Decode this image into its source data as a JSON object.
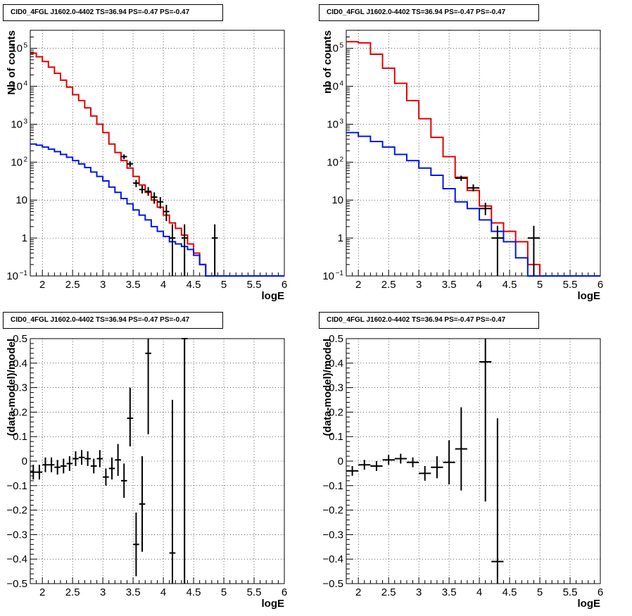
{
  "chart_data": [
    {
      "id": "top-left",
      "type": "line",
      "title": "CID0_4FGL J1602.0-4402 TS=36.94 PS=-0.47 PS=-0.47",
      "xlabel": "logE",
      "ylabel": "Nb of counts",
      "xlim": [
        1.8,
        6.0
      ],
      "ylim": [
        0.1,
        300000
      ],
      "yscale": "log",
      "grid": true,
      "xticks": [
        "2",
        "2.5",
        "3",
        "3.5",
        "4",
        "4.5",
        "5",
        "5.5",
        "6"
      ],
      "yticks": [
        {
          "label": "10",
          "sup": "−1",
          "value": 0.1
        },
        {
          "label": "1",
          "sup": "",
          "value": 1
        },
        {
          "label": "10",
          "sup": "",
          "value": 10
        },
        {
          "label": "10",
          "sup": "2",
          "value": 100
        },
        {
          "label": "10",
          "sup": "3",
          "value": 1000
        },
        {
          "label": "10",
          "sup": "4",
          "value": 10000
        },
        {
          "label": "10",
          "sup": "5",
          "value": 100000
        }
      ],
      "series": [
        {
          "color": "#e00000",
          "kind": "step",
          "edges": [
            1.8,
            1.9,
            2.0,
            2.1,
            2.2,
            2.3,
            2.4,
            2.5,
            2.6,
            2.7,
            2.8,
            2.9,
            3.0,
            3.1,
            3.2,
            3.3,
            3.4,
            3.5,
            3.6,
            3.7,
            3.8,
            3.9,
            4.0,
            4.1,
            4.2,
            4.3,
            4.4,
            4.5,
            4.6,
            4.7,
            4.8,
            4.9,
            5.0,
            5.1,
            5.2,
            5.3,
            5.4,
            5.5,
            5.6,
            5.7,
            5.8,
            5.9,
            6.0
          ],
          "values": [
            75000,
            60000,
            45000,
            32000,
            22000,
            14500,
            9500,
            6000,
            4200,
            2700,
            1650,
            1000,
            600,
            300,
            180,
            110,
            70,
            42,
            25,
            16,
            10,
            6.5,
            4,
            2.5,
            1.8,
            1.2,
            0.7,
            0.4,
            0.2,
            0.1,
            0.1,
            0.1,
            0.1,
            0.1,
            0.1,
            0.1,
            0.1,
            0.1,
            0.1,
            0.1,
            0.1,
            0.1
          ]
        },
        {
          "color": "#0018e0",
          "kind": "step",
          "edges": [
            1.8,
            1.9,
            2.0,
            2.1,
            2.2,
            2.3,
            2.4,
            2.5,
            2.6,
            2.7,
            2.8,
            2.9,
            3.0,
            3.1,
            3.2,
            3.3,
            3.4,
            3.5,
            3.6,
            3.7,
            3.8,
            3.9,
            4.0,
            4.1,
            4.2,
            4.3,
            4.4,
            4.5,
            4.6,
            4.7,
            4.8,
            4.9,
            5.0,
            5.1,
            5.2,
            5.3,
            5.4,
            5.5,
            5.6,
            5.7,
            5.8,
            5.9,
            6.0
          ],
          "values": [
            300,
            280,
            250,
            220,
            190,
            160,
            135,
            110,
            90,
            72,
            55,
            42,
            32,
            22,
            16,
            11,
            8,
            5.5,
            4,
            3,
            2,
            1.5,
            1.1,
            0.8,
            0.7,
            0.6,
            0.5,
            0.35,
            0.2,
            0.1,
            0.1,
            0.1,
            0.1,
            0.1,
            0.1,
            0.1,
            0.1,
            0.1,
            0.1,
            0.1,
            0.1,
            0.1
          ]
        },
        {
          "color": "#000000",
          "kind": "errorbar",
          "points": [
            {
              "x": 3.35,
              "y": 140,
              "lo": 120,
              "hi": 160,
              "xerr": 0.05
            },
            {
              "x": 3.45,
              "y": 90,
              "lo": 75,
              "hi": 105,
              "xerr": 0.05
            },
            {
              "x": 3.55,
              "y": 28,
              "lo": 22,
              "hi": 34,
              "xerr": 0.05
            },
            {
              "x": 3.65,
              "y": 19,
              "lo": 15,
              "hi": 24,
              "xerr": 0.05
            },
            {
              "x": 3.75,
              "y": 17,
              "lo": 13,
              "hi": 22,
              "xerr": 0.05
            },
            {
              "x": 3.85,
              "y": 12,
              "lo": 8,
              "hi": 16,
              "xerr": 0.05
            },
            {
              "x": 3.95,
              "y": 9,
              "lo": 6,
              "hi": 12,
              "xerr": 0.05
            },
            {
              "x": 4.05,
              "y": 5,
              "lo": 2.8,
              "hi": 7.5,
              "xerr": 0.05
            },
            {
              "x": 4.15,
              "y": 1,
              "lo": 0.1,
              "hi": 2.3,
              "xerr": 0.05
            },
            {
              "x": 4.35,
              "y": 1,
              "lo": 0.1,
              "hi": 2.3,
              "xerr": 0.05
            },
            {
              "x": 4.85,
              "y": 1,
              "lo": 0.1,
              "hi": 2.3,
              "xerr": 0.05
            }
          ]
        }
      ]
    },
    {
      "id": "top-right",
      "type": "line",
      "title": "CID0_4FGL J1602.0-4402 TS=36.94 PS=-0.47 PS=-0.47",
      "xlabel": "logE",
      "ylabel": "nb of counts",
      "xlim": [
        1.8,
        6.0
      ],
      "ylim": [
        0.1,
        300000
      ],
      "yscale": "log",
      "grid": true,
      "xticks": [
        "2",
        "2.5",
        "3",
        "3.5",
        "4",
        "4.5",
        "5",
        "5.5",
        "6"
      ],
      "yticks": [
        {
          "label": "10",
          "sup": "−1",
          "value": 0.1
        },
        {
          "label": "1",
          "sup": "",
          "value": 1
        },
        {
          "label": "10",
          "sup": "",
          "value": 10
        },
        {
          "label": "10",
          "sup": "2",
          "value": 100
        },
        {
          "label": "10",
          "sup": "3",
          "value": 1000
        },
        {
          "label": "10",
          "sup": "4",
          "value": 10000
        },
        {
          "label": "10",
          "sup": "5",
          "value": 100000
        }
      ],
      "series": [
        {
          "color": "#e00000",
          "kind": "step",
          "edges": [
            1.8,
            2.0,
            2.2,
            2.4,
            2.6,
            2.8,
            3.0,
            3.2,
            3.4,
            3.6,
            3.8,
            4.0,
            4.2,
            4.4,
            4.6,
            4.8,
            5.0,
            5.2,
            5.4,
            5.6,
            5.8,
            6.0
          ],
          "values": [
            150000,
            140000,
            70000,
            30000,
            12000,
            4200,
            1400,
            450,
            140,
            40,
            18,
            7,
            2.5,
            1.5,
            0.8,
            0.2,
            0.1,
            0.1,
            0.1,
            0.1,
            0.1
          ]
        },
        {
          "color": "#0018e0",
          "kind": "step",
          "edges": [
            1.8,
            2.0,
            2.2,
            2.4,
            2.6,
            2.8,
            3.0,
            3.2,
            3.4,
            3.6,
            3.8,
            4.0,
            4.2,
            4.4,
            4.6,
            4.8,
            5.0,
            5.2,
            5.4,
            5.6,
            5.8,
            6.0
          ],
          "values": [
            600,
            480,
            350,
            250,
            160,
            110,
            70,
            45,
            20,
            9,
            6,
            3,
            1.5,
            0.8,
            0.3,
            0.1,
            0.1,
            0.1,
            0.1,
            0.1,
            0.1
          ]
        },
        {
          "color": "#000000",
          "kind": "errorbar",
          "points": [
            {
              "x": 3.7,
              "y": 38,
              "lo": 32,
              "hi": 44,
              "xerr": 0.1
            },
            {
              "x": 3.9,
              "y": 21,
              "lo": 17,
              "hi": 26,
              "xerr": 0.1
            },
            {
              "x": 4.1,
              "y": 6,
              "lo": 4,
              "hi": 8.5,
              "xerr": 0.1
            },
            {
              "x": 4.3,
              "y": 1,
              "lo": 0.1,
              "hi": 2.1,
              "xerr": 0.1
            },
            {
              "x": 4.9,
              "y": 1,
              "lo": 0.1,
              "hi": 2.1,
              "xerr": 0.1
            }
          ]
        }
      ]
    },
    {
      "id": "bottom-left",
      "type": "scatter",
      "title": "CID0_4FGL J1602.0-4402 TS=36.94 PS=-0.47 PS=-0.47",
      "xlabel": "logE",
      "ylabel": "(data-model)/model",
      "xlim": [
        1.8,
        6.0
      ],
      "ylim": [
        -0.5,
        0.5
      ],
      "yscale": "linear",
      "grid": true,
      "xticks": [
        "2",
        "2.5",
        "3",
        "3.5",
        "4",
        "4.5",
        "5",
        "5.5",
        "6"
      ],
      "yticks": [
        {
          "label": "−0.5",
          "sup": "",
          "value": -0.5
        },
        {
          "label": "−0.4",
          "sup": "",
          "value": -0.4
        },
        {
          "label": "−0.3",
          "sup": "",
          "value": -0.3
        },
        {
          "label": "−0.2",
          "sup": "",
          "value": -0.2
        },
        {
          "label": "−0.1",
          "sup": "",
          "value": -0.1
        },
        {
          "label": "0",
          "sup": "",
          "value": 0
        },
        {
          "label": "0.1",
          "sup": "",
          "value": 0.1
        },
        {
          "label": "0.2",
          "sup": "",
          "value": 0.2
        },
        {
          "label": "0.3",
          "sup": "",
          "value": 0.3
        },
        {
          "label": "0.4",
          "sup": "",
          "value": 0.4
        },
        {
          "label": "0.5",
          "sup": "",
          "value": 0.5
        }
      ],
      "series": [
        {
          "color": "#000000",
          "kind": "errorbar",
          "points": [
            {
              "x": 1.85,
              "y": -0.045,
              "lo": -0.075,
              "hi": -0.015,
              "xerr": 0.05
            },
            {
              "x": 1.95,
              "y": -0.045,
              "lo": -0.075,
              "hi": -0.015,
              "xerr": 0.05
            },
            {
              "x": 2.05,
              "y": -0.015,
              "lo": -0.045,
              "hi": 0.015,
              "xerr": 0.05
            },
            {
              "x": 2.15,
              "y": -0.015,
              "lo": -0.045,
              "hi": 0.015,
              "xerr": 0.05
            },
            {
              "x": 2.25,
              "y": -0.025,
              "lo": -0.055,
              "hi": 0.005,
              "xerr": 0.05
            },
            {
              "x": 2.35,
              "y": -0.02,
              "lo": -0.05,
              "hi": 0.01,
              "xerr": 0.05
            },
            {
              "x": 2.45,
              "y": -0.01,
              "lo": -0.04,
              "hi": 0.02,
              "xerr": 0.05
            },
            {
              "x": 2.55,
              "y": 0.01,
              "lo": -0.02,
              "hi": 0.04,
              "xerr": 0.05
            },
            {
              "x": 2.65,
              "y": 0.015,
              "lo": -0.015,
              "hi": 0.045,
              "xerr": 0.05
            },
            {
              "x": 2.75,
              "y": 0.01,
              "lo": -0.02,
              "hi": 0.04,
              "xerr": 0.05
            },
            {
              "x": 2.85,
              "y": -0.02,
              "lo": -0.05,
              "hi": 0.01,
              "xerr": 0.05
            },
            {
              "x": 2.95,
              "y": 0.01,
              "lo": -0.025,
              "hi": 0.045,
              "xerr": 0.05
            },
            {
              "x": 3.05,
              "y": -0.065,
              "lo": -0.1,
              "hi": -0.03,
              "xerr": 0.05
            },
            {
              "x": 3.15,
              "y": -0.03,
              "lo": -0.075,
              "hi": 0.015,
              "xerr": 0.05
            },
            {
              "x": 3.25,
              "y": 0.005,
              "lo": -0.06,
              "hi": 0.07,
              "xerr": 0.05
            },
            {
              "x": 3.35,
              "y": -0.08,
              "lo": -0.15,
              "hi": -0.01,
              "xerr": 0.05
            },
            {
              "x": 3.45,
              "y": 0.175,
              "lo": 0.06,
              "hi": 0.3,
              "xerr": 0.05
            },
            {
              "x": 3.55,
              "y": -0.34,
              "lo": -0.47,
              "hi": -0.21,
              "xerr": 0.05
            },
            {
              "x": 3.65,
              "y": -0.175,
              "lo": -0.37,
              "hi": 0.02,
              "xerr": 0.05
            },
            {
              "x": 3.75,
              "y": 0.44,
              "lo": 0.11,
              "hi": 0.5,
              "xerr": 0.05
            },
            {
              "x": 4.15,
              "y": -0.375,
              "lo": -0.5,
              "hi": 0.25,
              "xerr": 0.05
            },
            {
              "x": 4.35,
              "y": 0.5,
              "lo": -0.5,
              "hi": 0.5,
              "xerr": 0.05
            }
          ]
        }
      ]
    },
    {
      "id": "bottom-right",
      "type": "scatter",
      "title": "CID0_4FGL J1602.0-4402 TS=36.94 PS=-0.47 PS=-0.47",
      "xlabel": "logE",
      "ylabel": "(data-model)/model",
      "xlim": [
        1.8,
        6.0
      ],
      "ylim": [
        -0.5,
        0.5
      ],
      "yscale": "linear",
      "grid": true,
      "xticks": [
        "2",
        "2.5",
        "3",
        "3.5",
        "4",
        "4.5",
        "5",
        "5.5",
        "6"
      ],
      "yticks": [
        {
          "label": "−0.5",
          "sup": "",
          "value": -0.5
        },
        {
          "label": "−0.4",
          "sup": "",
          "value": -0.4
        },
        {
          "label": "−0.3",
          "sup": "",
          "value": -0.3
        },
        {
          "label": "−0.2",
          "sup": "",
          "value": -0.2
        },
        {
          "label": "−0.1",
          "sup": "",
          "value": -0.1
        },
        {
          "label": "0",
          "sup": "",
          "value": 0
        },
        {
          "label": "0.1",
          "sup": "",
          "value": 0.1
        },
        {
          "label": "0.2",
          "sup": "",
          "value": 0.2
        },
        {
          "label": "0.3",
          "sup": "",
          "value": 0.3
        },
        {
          "label": "0.4",
          "sup": "",
          "value": 0.4
        },
        {
          "label": "0.5",
          "sup": "",
          "value": 0.5
        }
      ],
      "series": [
        {
          "color": "#000000",
          "kind": "errorbar",
          "points": [
            {
              "x": 1.9,
              "y": -0.04,
              "lo": -0.06,
              "hi": -0.02,
              "xerr": 0.1
            },
            {
              "x": 2.1,
              "y": -0.015,
              "lo": -0.035,
              "hi": 0.005,
              "xerr": 0.1
            },
            {
              "x": 2.3,
              "y": -0.02,
              "lo": -0.04,
              "hi": 0.0,
              "xerr": 0.1
            },
            {
              "x": 2.5,
              "y": 0.005,
              "lo": -0.015,
              "hi": 0.025,
              "xerr": 0.1
            },
            {
              "x": 2.7,
              "y": 0.01,
              "lo": -0.01,
              "hi": 0.03,
              "xerr": 0.1
            },
            {
              "x": 2.9,
              "y": -0.005,
              "lo": -0.025,
              "hi": 0.015,
              "xerr": 0.1
            },
            {
              "x": 3.1,
              "y": -0.05,
              "lo": -0.08,
              "hi": -0.02,
              "xerr": 0.1
            },
            {
              "x": 3.3,
              "y": -0.025,
              "lo": -0.07,
              "hi": 0.02,
              "xerr": 0.1
            },
            {
              "x": 3.5,
              "y": -0.005,
              "lo": -0.095,
              "hi": 0.085,
              "xerr": 0.1
            },
            {
              "x": 3.7,
              "y": 0.05,
              "lo": -0.12,
              "hi": 0.22,
              "xerr": 0.1
            },
            {
              "x": 4.1,
              "y": 0.405,
              "lo": -0.165,
              "hi": 0.5,
              "xerr": 0.1
            },
            {
              "x": 4.3,
              "y": -0.41,
              "lo": -0.5,
              "hi": 0.175,
              "xerr": 0.1
            }
          ]
        }
      ]
    }
  ]
}
